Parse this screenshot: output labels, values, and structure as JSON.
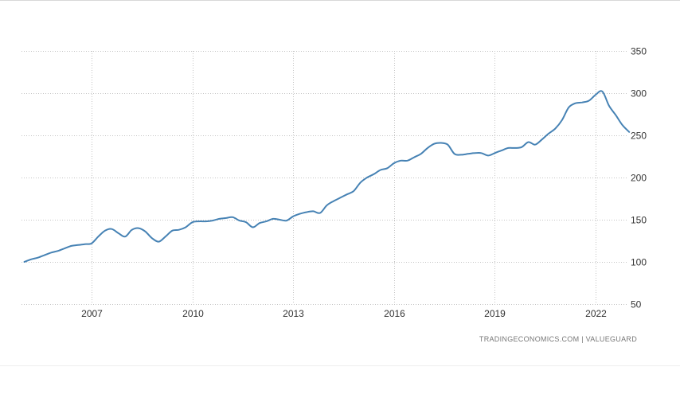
{
  "source_label": "TRADINGECONOMICS.COM  |  VALUEGUARD",
  "chart_data": {
    "type": "line",
    "title": "",
    "xlabel": "",
    "ylabel": "",
    "x_ticks": [
      "2007",
      "2010",
      "2013",
      "2016",
      "2019",
      "2022"
    ],
    "y_ticks": [
      50,
      100,
      150,
      200,
      250,
      300,
      350
    ],
    "xlim": [
      2005.0,
      2023.0
    ],
    "ylim": [
      50,
      350
    ],
    "grid": true,
    "line_color": "#4682b4",
    "series": [
      {
        "x": [
          2005.0,
          2005.2,
          2005.4,
          2005.6,
          2005.8,
          2006.0,
          2006.2,
          2006.4,
          2006.6,
          2006.8,
          2007.0,
          2007.2,
          2007.4,
          2007.6,
          2007.8,
          2008.0,
          2008.2,
          2008.4,
          2008.6,
          2008.8,
          2009.0,
          2009.2,
          2009.4,
          2009.6,
          2009.8,
          2010.0,
          2010.2,
          2010.4,
          2010.6,
          2010.8,
          2011.0,
          2011.2,
          2011.4,
          2011.6,
          2011.8,
          2012.0,
          2012.2,
          2012.4,
          2012.6,
          2012.8,
          2013.0,
          2013.2,
          2013.4,
          2013.6,
          2013.8,
          2014.0,
          2014.2,
          2014.4,
          2014.6,
          2014.8,
          2015.0,
          2015.2,
          2015.4,
          2015.6,
          2015.8,
          2016.0,
          2016.2,
          2016.4,
          2016.6,
          2016.8,
          2017.0,
          2017.2,
          2017.4,
          2017.6,
          2017.8,
          2018.0,
          2018.2,
          2018.4,
          2018.6,
          2018.8,
          2019.0,
          2019.2,
          2019.4,
          2019.6,
          2019.8,
          2020.0,
          2020.2,
          2020.4,
          2020.6,
          2020.8,
          2021.0,
          2021.2,
          2021.4,
          2021.6,
          2021.8,
          2022.0,
          2022.2,
          2022.4,
          2022.6,
          2022.8,
          2023.0
        ],
        "values": [
          100,
          103,
          105,
          108,
          111,
          113,
          116,
          119,
          120,
          121,
          122,
          130,
          137,
          139,
          134,
          130,
          138,
          140,
          136,
          128,
          124,
          130,
          137,
          138,
          141,
          147,
          148,
          148,
          149,
          151,
          152,
          153,
          149,
          147,
          141,
          146,
          148,
          151,
          150,
          149,
          154,
          157,
          159,
          160,
          158,
          167,
          172,
          176,
          180,
          184,
          194,
          200,
          204,
          209,
          211,
          217,
          220,
          220,
          224,
          228,
          235,
          240,
          241,
          239,
          228,
          227,
          228,
          229,
          229,
          226,
          229,
          232,
          235,
          235,
          236,
          242,
          239,
          245,
          252,
          258,
          268,
          283,
          288,
          289,
          291,
          298,
          302,
          285,
          274,
          262,
          254
        ]
      }
    ]
  }
}
